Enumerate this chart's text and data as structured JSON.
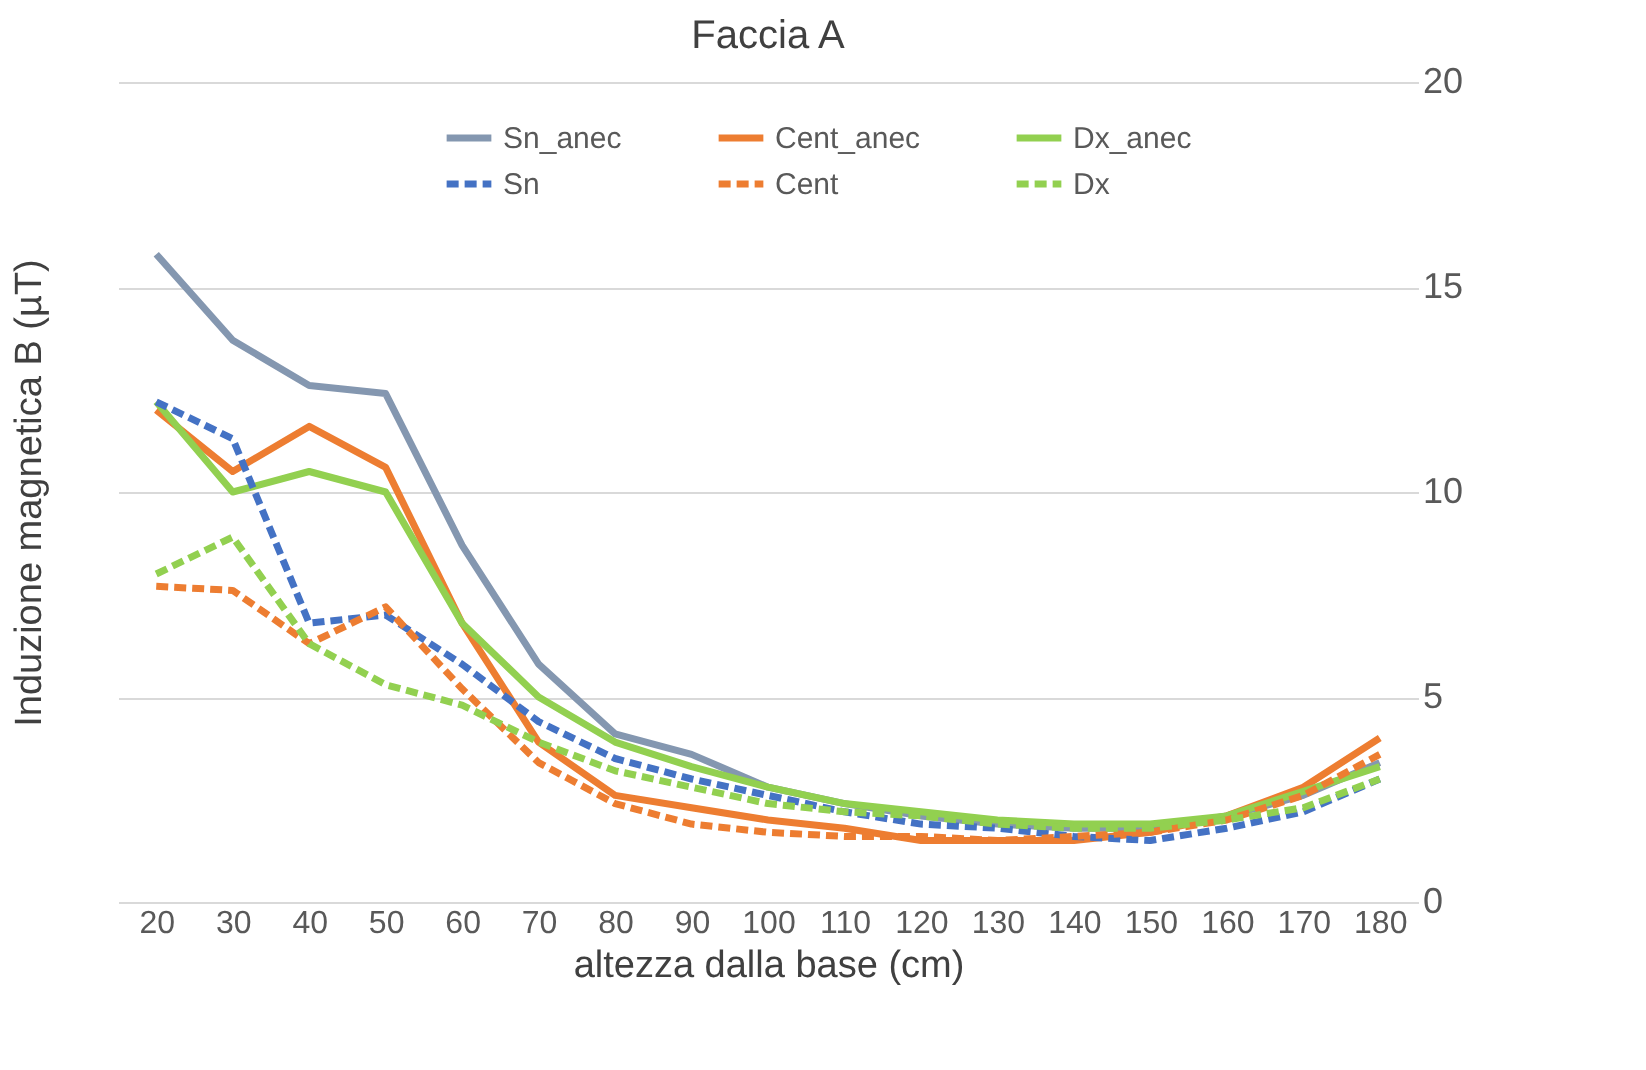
{
  "chart_data": {
    "type": "line",
    "title": "Faccia A",
    "xlabel": "altezza dalla base (cm)",
    "ylabel": "Induzione magnetica B (µT)",
    "categories": [
      "20",
      "30",
      "40",
      "50",
      "60",
      "70",
      "80",
      "90",
      "100",
      "110",
      "120",
      "130",
      "140",
      "150",
      "160",
      "170",
      "180"
    ],
    "ylim": [
      0,
      20
    ],
    "yticks": [
      0,
      5,
      10,
      15,
      20
    ],
    "grid": "y",
    "legend": "top",
    "series": [
      {
        "name": "Sn_anec",
        "color": "#8497b0",
        "line_style": "solid",
        "values": [
          15.8,
          13.7,
          12.6,
          12.4,
          8.7,
          5.8,
          4.1,
          3.6,
          2.8,
          2.4,
          2.1,
          1.9,
          1.8,
          1.8,
          2.1,
          2.6,
          3.4
        ]
      },
      {
        "name": "Cent_anec",
        "color": "#ed7d31",
        "line_style": "solid",
        "values": [
          12.0,
          10.5,
          11.6,
          10.6,
          6.8,
          3.9,
          2.6,
          2.3,
          2.0,
          1.8,
          1.5,
          1.5,
          1.5,
          1.7,
          2.1,
          2.8,
          4.0
        ]
      },
      {
        "name": "Dx_anec",
        "color": "#92d050",
        "line_style": "solid",
        "values": [
          12.2,
          10.0,
          10.5,
          10.0,
          6.8,
          5.0,
          3.9,
          3.3,
          2.8,
          2.4,
          2.2,
          2.0,
          1.9,
          1.9,
          2.1,
          2.7,
          3.3
        ]
      },
      {
        "name": "Sn",
        "color": "#4472c4",
        "line_style": "dashed",
        "values": [
          12.2,
          11.3,
          6.8,
          7.0,
          5.8,
          4.4,
          3.5,
          3.0,
          2.6,
          2.2,
          1.9,
          1.8,
          1.6,
          1.5,
          1.8,
          2.2,
          3.0
        ]
      },
      {
        "name": "Cent",
        "color": "#ed7d31",
        "line_style": "dashed",
        "values": [
          7.7,
          7.6,
          6.3,
          7.2,
          5.2,
          3.4,
          2.4,
          1.9,
          1.7,
          1.6,
          1.6,
          1.5,
          1.6,
          1.7,
          2.0,
          2.6,
          3.6
        ]
      },
      {
        "name": "Dx",
        "color": "#92d050",
        "line_style": "dashed",
        "values": [
          8.0,
          8.9,
          6.3,
          5.3,
          4.8,
          3.9,
          3.2,
          2.8,
          2.4,
          2.2,
          2.1,
          1.9,
          1.8,
          1.8,
          2.0,
          2.3,
          3.0
        ]
      }
    ]
  }
}
